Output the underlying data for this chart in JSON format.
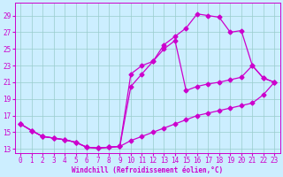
{
  "xlabel": "Windchill (Refroidissement éolien,°C)",
  "bg_color": "#cceeff",
  "grid_color": "#99cccc",
  "line_color": "#cc00cc",
  "xlim": [
    -0.5,
    23.5
  ],
  "ylim": [
    12.5,
    30.5
  ],
  "xticks": [
    0,
    1,
    2,
    3,
    4,
    5,
    6,
    7,
    8,
    9,
    10,
    11,
    12,
    13,
    14,
    15,
    16,
    17,
    18,
    19,
    20,
    21,
    22,
    23
  ],
  "yticks": [
    13,
    15,
    17,
    19,
    21,
    23,
    25,
    27,
    29
  ],
  "line1_x": [
    0,
    1,
    2,
    3,
    4,
    5,
    6,
    7,
    8,
    9,
    10,
    11,
    12,
    13,
    14,
    15,
    16,
    17,
    18,
    19,
    20,
    21,
    22,
    23
  ],
  "line1_y": [
    16.0,
    15.2,
    14.5,
    14.3,
    14.1,
    13.8,
    13.2,
    13.1,
    13.2,
    13.3,
    14.0,
    14.5,
    15.0,
    15.5,
    16.0,
    16.5,
    17.0,
    17.3,
    17.6,
    17.9,
    18.2,
    18.5,
    19.5,
    21.0
  ],
  "line2_x": [
    0,
    1,
    2,
    3,
    4,
    5,
    6,
    7,
    8,
    9,
    10,
    11,
    12,
    13,
    14,
    15,
    16,
    17,
    18,
    19,
    20,
    21,
    22,
    23
  ],
  "line2_y": [
    16.0,
    15.2,
    14.5,
    14.3,
    14.1,
    13.8,
    13.2,
    13.1,
    13.2,
    13.3,
    20.5,
    22.0,
    23.5,
    25.5,
    26.5,
    27.5,
    29.2,
    29.0,
    28.8,
    27.0,
    27.2,
    23.0,
    21.5,
    21.0
  ],
  "line3_x": [
    0,
    1,
    2,
    3,
    4,
    5,
    6,
    7,
    8,
    9,
    10,
    11,
    12,
    13,
    14,
    15,
    16,
    17,
    18,
    19,
    20,
    21,
    22,
    23
  ],
  "line3_y": [
    16.0,
    15.2,
    14.5,
    14.3,
    14.1,
    13.8,
    13.2,
    13.1,
    13.2,
    13.3,
    22.0,
    23.0,
    23.5,
    25.0,
    26.0,
    20.0,
    20.5,
    20.8,
    21.0,
    21.3,
    21.6,
    23.0,
    21.5,
    21.0
  ]
}
